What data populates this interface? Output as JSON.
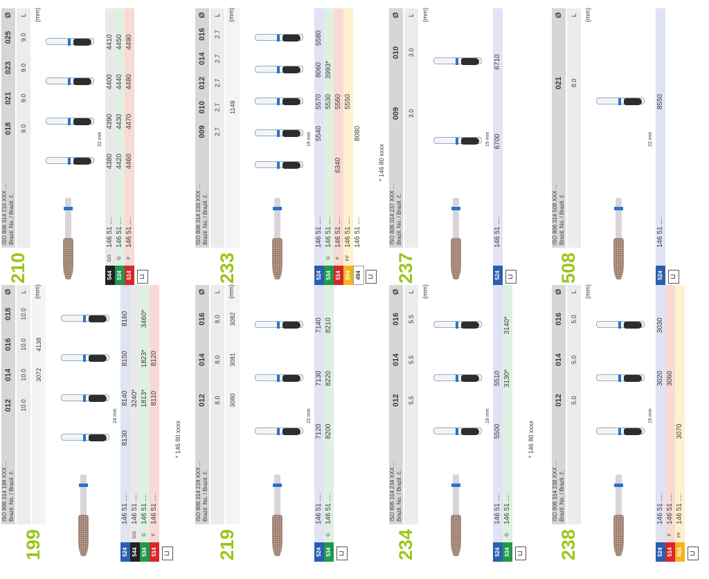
{
  "header_labels": {
    "brazil": "Brazil. No. / Brazil. č.",
    "diameter": "Ø",
    "length": "L (mm)",
    "note": "* 146 80 xxxx"
  },
  "cards": [
    {
      "shape": "199",
      "iso": "ISO 806 314 199 XXX ...",
      "sizes": [
        "012",
        "014",
        "016",
        "018"
      ],
      "lengths": [
        "10.0",
        "10.0",
        "10.0",
        "10.0"
      ],
      "extra_row": [
        "",
        "3072",
        "4138"
      ],
      "measure": "24 mm",
      "orders": [
        {
          "code": "524",
          "grit": "",
          "brazil": "146 51 ....",
          "vals": [
            "8130",
            "8140",
            "8150",
            "8160"
          ],
          "color": "#2a5fb0",
          "tint": "#dfe3f3"
        },
        {
          "code": "544",
          "grit": "GG",
          "brazil": "146 51 ....",
          "vals": [
            "",
            "3240*",
            "",
            ""
          ],
          "color": "#222",
          "tint": "#e9e9ea"
        },
        {
          "code": "534",
          "grit": "G",
          "brazil": "146 51 ....",
          "vals": [
            "",
            "1813*",
            "1823*",
            "3460*"
          ],
          "color": "#1e9a4a",
          "tint": "#dff0e2"
        },
        {
          "code": "514",
          "grit": "F",
          "brazil": "146 51 ....",
          "vals": [
            "",
            "8110",
            "8120",
            ""
          ],
          "color": "#d8262b",
          "tint": "#f8d9d4"
        }
      ],
      "note": true
    },
    {
      "shape": "210",
      "iso": "ISO 806 314 210 XXX ...",
      "sizes": [
        "018",
        "021",
        "023",
        "025"
      ],
      "lengths": [
        "9.0",
        "9.0",
        "9.0",
        "9.0"
      ],
      "extra_row": [],
      "measure": "22 mm",
      "orders": [
        {
          "code": "544",
          "grit": "GG",
          "brazil": "146 51 ....",
          "vals": [
            "4380",
            "4390",
            "4400",
            "4410"
          ],
          "color": "#222",
          "tint": "#e9e9ea"
        },
        {
          "code": "534",
          "grit": "G",
          "brazil": "146 51 ....",
          "vals": [
            "4420",
            "4430",
            "4440",
            "4450"
          ],
          "color": "#1e9a4a",
          "tint": "#dff0e2"
        },
        {
          "code": "514",
          "grit": "F",
          "brazil": "146 51 ....",
          "vals": [
            "4460",
            "4470",
            "4480",
            "4490"
          ],
          "color": "#d8262b",
          "tint": "#f8d9d4"
        }
      ],
      "note": false
    },
    {
      "shape": "219",
      "iso": "ISO 806 314 219 XXX ...",
      "sizes": [
        "012",
        "014",
        "016"
      ],
      "lengths": [
        "8.0",
        "8.0",
        "8.0"
      ],
      "extra_row": [
        "3080",
        "3081",
        "3082"
      ],
      "measure": "22 mm",
      "orders": [
        {
          "code": "524",
          "grit": "",
          "brazil": "146 51 ....",
          "vals": [
            "7120",
            "7130",
            "7140"
          ],
          "color": "#2a5fb0",
          "tint": "#dfe3f3"
        },
        {
          "code": "534",
          "grit": "G",
          "brazil": "146 51 ....",
          "vals": [
            "8200",
            "8220",
            "8210"
          ],
          "color": "#1e9a4a",
          "tint": "#dff0e2"
        }
      ],
      "note": false
    },
    {
      "shape": "233",
      "iso": "ISO 806 314 233 XXX ...",
      "sizes": [
        "009",
        "010",
        "012",
        "014",
        "016"
      ],
      "lengths": [
        "2.7",
        "2.7",
        "2.7",
        "2.7",
        "2.7"
      ],
      "extra_row": [
        "",
        "1149"
      ],
      "measure": "19 mm",
      "orders": [
        {
          "code": "524",
          "grit": "",
          "brazil": "146 51 ....",
          "vals": [
            "",
            "5540",
            "5570",
            "8060",
            "5580"
          ],
          "color": "#2a5fb0",
          "tint": "#dfe3f3"
        },
        {
          "code": "534",
          "grit": "G",
          "brazil": "146 51 ....",
          "vals": [
            "",
            "",
            "5530",
            "3993*",
            ""
          ],
          "color": "#1e9a4a",
          "tint": "#dff0e2"
        },
        {
          "code": "514",
          "grit": "F",
          "brazil": "146 51 ....",
          "vals": [
            "6340",
            "",
            "5560",
            "",
            ""
          ],
          "color": "#d8262b",
          "tint": "#f8d9d4"
        },
        {
          "code": "504",
          "grit": "FF",
          "brazil": "146 51 ....",
          "vals": [
            "",
            "",
            "5550",
            "",
            ""
          ],
          "color": "#f4b41a",
          "tint": "#fdf1cf"
        },
        {
          "code": "494",
          "grit": "",
          "brazil": "146 51 ....",
          "vals": [
            "",
            "8080",
            "",
            "",
            ""
          ],
          "color": "#ffffff",
          "tint": "#ffffff"
        }
      ],
      "note": true
    },
    {
      "shape": "234",
      "iso": "ISO 806 314 234 XXX ...",
      "sizes": [
        "012",
        "014",
        "016"
      ],
      "lengths": [
        "5.5",
        "5.5",
        "5.5"
      ],
      "extra_row": [],
      "measure": "19 mm",
      "orders": [
        {
          "code": "524",
          "grit": "",
          "brazil": "146 51 ....",
          "vals": [
            "5500",
            "5510",
            ""
          ],
          "color": "#2a5fb0",
          "tint": "#dfe3f3"
        },
        {
          "code": "534",
          "grit": "G",
          "brazil": "146 51 ....",
          "vals": [
            "",
            "3130*",
            "3140*"
          ],
          "color": "#1e9a4a",
          "tint": "#dff0e2"
        }
      ],
      "note": true
    },
    {
      "shape": "237",
      "iso": "ISO 806 314 237 XXX ...",
      "sizes": [
        "009",
        "010"
      ],
      "lengths": [
        "3.0",
        "3.0"
      ],
      "extra_row": [],
      "measure": "19 mm",
      "orders": [
        {
          "code": "524",
          "grit": "",
          "brazil": "146 51 ....",
          "vals": [
            "6700",
            "6710"
          ],
          "color": "#2a5fb0",
          "tint": "#dfe3f3"
        }
      ],
      "note": false
    },
    {
      "shape": "238",
      "iso": "ISO 806 314 238 XXX ...",
      "sizes": [
        "012",
        "014",
        "016"
      ],
      "lengths": [
        "5.0",
        "5.0",
        "5.0"
      ],
      "extra_row": [],
      "measure": "19 mm",
      "orders": [
        {
          "code": "524",
          "grit": "",
          "brazil": "146 51 ....",
          "vals": [
            "",
            "3020",
            "3030"
          ],
          "color": "#2a5fb0",
          "tint": "#dfe3f3"
        },
        {
          "code": "514",
          "grit": "F",
          "brazil": "146 51 ....",
          "vals": [
            "",
            "3060",
            ""
          ],
          "color": "#d8262b",
          "tint": "#f8d9d4"
        },
        {
          "code": "504",
          "grit": "FF",
          "brazil": "146 51 ....",
          "vals": [
            "3070",
            "",
            ""
          ],
          "color": "#f4b41a",
          "tint": "#fdf1cf"
        }
      ],
      "note": false
    },
    {
      "shape": "508",
      "iso": "ISO 806 314 508 XXX ...",
      "sizes": [
        "021"
      ],
      "lengths": [
        "8.0"
      ],
      "extra_row": [],
      "measure": "22 mm",
      "orders": [
        {
          "code": "524",
          "grit": "",
          "brazil": "146 51 ....",
          "vals": [
            "8550"
          ],
          "color": "#2a5fb0",
          "tint": "#dfe3f3"
        }
      ],
      "note": false
    }
  ]
}
